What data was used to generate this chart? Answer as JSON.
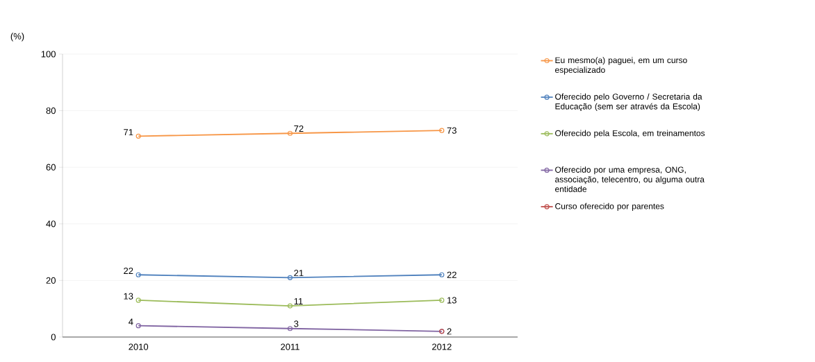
{
  "chart_data": {
    "type": "line",
    "ylabel": "(%)",
    "categories": [
      "2010",
      "2011",
      "2012"
    ],
    "ylim": [
      0,
      100
    ],
    "yticks": [
      0,
      20,
      40,
      60,
      80,
      100
    ],
    "grid": "y",
    "legend": "right",
    "marker": "circle",
    "line_style": "solid",
    "series": [
      {
        "name": "Eu mesmo(a) paguei, em um curso especializado",
        "color": "#f79646",
        "values": [
          71,
          72,
          73
        ],
        "value_labels": [
          "71",
          "72",
          "73"
        ]
      },
      {
        "name": "Oferecido pelo Governo / Secretaria da Educação (sem ser através da Escola)",
        "color": "#4f81bd",
        "values": [
          22,
          21,
          22
        ],
        "value_labels": [
          "22",
          "21",
          "22"
        ]
      },
      {
        "name": "Oferecido pela Escola, em treinamentos",
        "color": "#9bbb59",
        "values": [
          13,
          11,
          13
        ],
        "value_labels": [
          "13",
          "11",
          "13"
        ]
      },
      {
        "name": "Oferecido por uma empresa, ONG, associação, telecentro, ou alguma outra entidade",
        "color": "#8064a2",
        "values": [
          4,
          3,
          2
        ],
        "value_labels": [
          "4",
          "3",
          null
        ]
      },
      {
        "name": "Curso oferecido por parentes",
        "color": "#c0504d",
        "values": [
          null,
          null,
          2
        ],
        "value_labels": [
          null,
          null,
          "2"
        ]
      }
    ]
  }
}
